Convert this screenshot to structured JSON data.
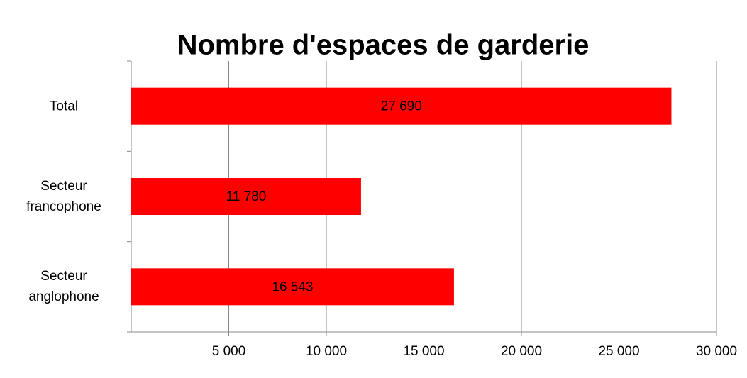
{
  "chart_data": {
    "type": "bar",
    "orientation": "horizontal",
    "title": "Nombre d'espaces de garderie",
    "categories": [
      "Total",
      "Secteur francophone",
      "Secteur anglophone"
    ],
    "values": [
      27690,
      11780,
      16543
    ],
    "value_labels": [
      "27 690",
      "11 780",
      "16 543"
    ],
    "color": "#ff0000",
    "xlim": [
      0,
      30000
    ],
    "xticks": [
      {
        "value": 5000,
        "label": "5 000"
      },
      {
        "value": 10000,
        "label": "10 000"
      },
      {
        "value": 15000,
        "label": "15 000"
      },
      {
        "value": 20000,
        "label": "20 000"
      },
      {
        "value": 25000,
        "label": "25 000"
      },
      {
        "value": 30000,
        "label": "30 000"
      }
    ],
    "grid": true
  }
}
